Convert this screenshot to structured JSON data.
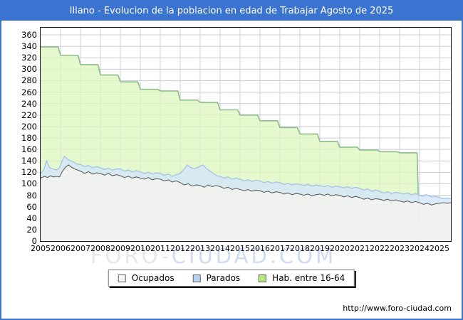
{
  "title": "Illano - Evolucion de la poblacion en edad de Trabajar Agosto de 2025",
  "watermark": {
    "part1": "FORO-",
    "part2": "CIUDAD.COM"
  },
  "footer_url": "http://www.foro-ciudad.com",
  "colors": {
    "frame_blue": "#3b74d0",
    "grid": "#ccccd8",
    "hab_fill": "#e0f6c2",
    "hab_line": "#8bbd8b",
    "parados_fill": "#d3e6fa",
    "parados_line": "#a6c6e6",
    "ocupados_fill": "#f2f2ee",
    "ocupados_line": "#5f5f5f"
  },
  "legend": [
    {
      "label": "Ocupados",
      "swatch": "#f4f4f0"
    },
    {
      "label": "Parados",
      "swatch": "#b7d3f2"
    },
    {
      "label": "Hab. entre 16-64",
      "swatch": "#b6e97c"
    }
  ],
  "chart_data": {
    "type": "area",
    "title": "Illano - Evolucion de la poblacion en edad de Trabajar Agosto de 2025",
    "x_axis": {
      "min": 2005,
      "max_data": 2025.57,
      "tick_labels": [
        "2005",
        "2006",
        "2007",
        "2008",
        "2009",
        "2010",
        "2011",
        "2012",
        "2013",
        "2014",
        "2015",
        "2016",
        "2017",
        "2018",
        "2019",
        "2020",
        "2021",
        "2022",
        "2023",
        "2024",
        "2025"
      ]
    },
    "y_axis": {
      "min": 0,
      "max": 360,
      "step": 20
    },
    "grid": true,
    "legend_position": "bottom",
    "series": [
      {
        "name": "Hab. entre 16-64",
        "style": "step",
        "fill": "#e0f6c2",
        "fill_opacity": 0.8,
        "line": "#8bbd8b",
        "line_width": 1.6,
        "points": [
          [
            2005,
            339
          ],
          [
            2006,
            324
          ],
          [
            2007,
            308
          ],
          [
            2008,
            290
          ],
          [
            2009,
            278
          ],
          [
            2010,
            265
          ],
          [
            2011,
            262
          ],
          [
            2012,
            246
          ],
          [
            2013,
            242
          ],
          [
            2014,
            229
          ],
          [
            2015,
            220
          ],
          [
            2016,
            210
          ],
          [
            2017,
            198
          ],
          [
            2018,
            187
          ],
          [
            2019,
            174
          ],
          [
            2020,
            164
          ],
          [
            2021,
            159
          ],
          [
            2022,
            156
          ],
          [
            2023,
            154
          ],
          [
            2024,
            0
          ]
        ]
      },
      {
        "name": "Parados (apilado sobre Ocupados)",
        "style": "line",
        "fill": "#d3e6fa",
        "fill_opacity": 0.8,
        "line": "#a6c6e6",
        "line_width": 1.4,
        "points": [
          [
            2005.0,
            118
          ],
          [
            2005.15,
            124
          ],
          [
            2005.3,
            140
          ],
          [
            2005.45,
            128
          ],
          [
            2005.6,
            126
          ],
          [
            2005.8,
            124
          ],
          [
            2005.95,
            128
          ],
          [
            2006.1,
            142
          ],
          [
            2006.2,
            148
          ],
          [
            2006.35,
            143
          ],
          [
            2006.5,
            140
          ],
          [
            2006.7,
            137
          ],
          [
            2006.85,
            134
          ],
          [
            2007.0,
            134
          ],
          [
            2007.2,
            130
          ],
          [
            2007.4,
            132
          ],
          [
            2007.6,
            128
          ],
          [
            2007.8,
            130
          ],
          [
            2008.0,
            128
          ],
          [
            2008.2,
            125
          ],
          [
            2008.4,
            127
          ],
          [
            2008.6,
            124
          ],
          [
            2008.8,
            126
          ],
          [
            2009.0,
            126
          ],
          [
            2009.2,
            122
          ],
          [
            2009.4,
            124
          ],
          [
            2009.6,
            121
          ],
          [
            2009.8,
            123
          ],
          [
            2010.0,
            121
          ],
          [
            2010.2,
            118
          ],
          [
            2010.4,
            120
          ],
          [
            2010.6,
            117
          ],
          [
            2010.8,
            119
          ],
          [
            2011.0,
            118
          ],
          [
            2011.2,
            115
          ],
          [
            2011.4,
            117
          ],
          [
            2011.6,
            113
          ],
          [
            2011.8,
            116
          ],
          [
            2012.0,
            118
          ],
          [
            2012.2,
            126
          ],
          [
            2012.35,
            133
          ],
          [
            2012.5,
            129
          ],
          [
            2012.7,
            126
          ],
          [
            2012.9,
            129
          ],
          [
            2013.0,
            131
          ],
          [
            2013.15,
            133
          ],
          [
            2013.3,
            127
          ],
          [
            2013.5,
            122
          ],
          [
            2013.7,
            117
          ],
          [
            2013.85,
            114
          ],
          [
            2014.0,
            113
          ],
          [
            2014.2,
            110
          ],
          [
            2014.4,
            112
          ],
          [
            2014.6,
            108
          ],
          [
            2014.8,
            110
          ],
          [
            2015.0,
            108
          ],
          [
            2015.2,
            105
          ],
          [
            2015.4,
            107
          ],
          [
            2015.6,
            104
          ],
          [
            2015.8,
            106
          ],
          [
            2016.0,
            105
          ],
          [
            2016.2,
            102
          ],
          [
            2016.4,
            104
          ],
          [
            2016.6,
            101
          ],
          [
            2016.8,
            103
          ],
          [
            2017.0,
            102
          ],
          [
            2017.2,
            99
          ],
          [
            2017.4,
            101
          ],
          [
            2017.6,
            98
          ],
          [
            2017.8,
            100
          ],
          [
            2018.0,
            99
          ],
          [
            2018.2,
            97
          ],
          [
            2018.4,
            99
          ],
          [
            2018.6,
            96
          ],
          [
            2018.8,
            98
          ],
          [
            2019.0,
            97
          ],
          [
            2019.2,
            95
          ],
          [
            2019.4,
            97
          ],
          [
            2019.6,
            94
          ],
          [
            2019.8,
            96
          ],
          [
            2020.0,
            95
          ],
          [
            2020.2,
            93
          ],
          [
            2020.4,
            95
          ],
          [
            2020.6,
            92
          ],
          [
            2020.8,
            94
          ],
          [
            2021.0,
            92
          ],
          [
            2021.2,
            89
          ],
          [
            2021.4,
            91
          ],
          [
            2021.6,
            87
          ],
          [
            2021.8,
            89
          ],
          [
            2022.0,
            87
          ],
          [
            2022.2,
            84
          ],
          [
            2022.4,
            86
          ],
          [
            2022.6,
            83
          ],
          [
            2022.8,
            85
          ],
          [
            2023.0,
            84
          ],
          [
            2023.2,
            82
          ],
          [
            2023.4,
            84
          ],
          [
            2023.6,
            81
          ],
          [
            2023.8,
            83
          ],
          [
            2024.0,
            80
          ],
          [
            2024.15,
            78
          ],
          [
            2024.3,
            81
          ],
          [
            2024.45,
            80
          ],
          [
            2024.6,
            77
          ],
          [
            2024.8,
            78
          ],
          [
            2025.0,
            76
          ],
          [
            2025.2,
            74
          ],
          [
            2025.4,
            75
          ],
          [
            2025.57,
            74
          ]
        ]
      },
      {
        "name": "Ocupados",
        "style": "line",
        "fill": "#f2f2ee",
        "fill_opacity": 0.88,
        "line": "#5f5f5f",
        "line_width": 1.1,
        "points": [
          [
            2005.0,
            110
          ],
          [
            2005.2,
            113
          ],
          [
            2005.35,
            111
          ],
          [
            2005.5,
            114
          ],
          [
            2005.65,
            112
          ],
          [
            2005.8,
            113
          ],
          [
            2005.95,
            112
          ],
          [
            2006.1,
            122
          ],
          [
            2006.25,
            129
          ],
          [
            2006.4,
            133
          ],
          [
            2006.55,
            129
          ],
          [
            2006.7,
            126
          ],
          [
            2006.85,
            124
          ],
          [
            2007.0,
            122
          ],
          [
            2007.2,
            118
          ],
          [
            2007.4,
            121
          ],
          [
            2007.6,
            117
          ],
          [
            2007.8,
            119
          ],
          [
            2008.0,
            118
          ],
          [
            2008.2,
            115
          ],
          [
            2008.4,
            118
          ],
          [
            2008.6,
            114
          ],
          [
            2008.8,
            116
          ],
          [
            2009.0,
            114
          ],
          [
            2009.2,
            111
          ],
          [
            2009.4,
            113
          ],
          [
            2009.6,
            110
          ],
          [
            2009.8,
            112
          ],
          [
            2010.0,
            110
          ],
          [
            2010.2,
            108
          ],
          [
            2010.4,
            111
          ],
          [
            2010.6,
            107
          ],
          [
            2010.8,
            109
          ],
          [
            2011.0,
            108
          ],
          [
            2011.2,
            105
          ],
          [
            2011.4,
            107
          ],
          [
            2011.6,
            103
          ],
          [
            2011.8,
            105
          ],
          [
            2012.0,
            102
          ],
          [
            2012.2,
            98
          ],
          [
            2012.4,
            100
          ],
          [
            2012.6,
            96
          ],
          [
            2012.8,
            98
          ],
          [
            2013.0,
            97
          ],
          [
            2013.2,
            94
          ],
          [
            2013.4,
            98
          ],
          [
            2013.6,
            95
          ],
          [
            2013.8,
            97
          ],
          [
            2014.0,
            95
          ],
          [
            2014.2,
            92
          ],
          [
            2014.4,
            94
          ],
          [
            2014.6,
            90
          ],
          [
            2014.8,
            92
          ],
          [
            2015.0,
            90
          ],
          [
            2015.2,
            88
          ],
          [
            2015.4,
            90
          ],
          [
            2015.6,
            87
          ],
          [
            2015.8,
            89
          ],
          [
            2016.0,
            88
          ],
          [
            2016.2,
            85
          ],
          [
            2016.4,
            87
          ],
          [
            2016.6,
            84
          ],
          [
            2016.8,
            86
          ],
          [
            2017.0,
            85
          ],
          [
            2017.2,
            82
          ],
          [
            2017.4,
            84
          ],
          [
            2017.6,
            81
          ],
          [
            2017.8,
            83
          ],
          [
            2018.0,
            82
          ],
          [
            2018.2,
            80
          ],
          [
            2018.4,
            82
          ],
          [
            2018.6,
            79
          ],
          [
            2018.8,
            81
          ],
          [
            2019.0,
            82
          ],
          [
            2019.2,
            80
          ],
          [
            2019.4,
            82
          ],
          [
            2019.6,
            79
          ],
          [
            2019.8,
            81
          ],
          [
            2020.0,
            80
          ],
          [
            2020.2,
            77
          ],
          [
            2020.4,
            79
          ],
          [
            2020.6,
            76
          ],
          [
            2020.8,
            78
          ],
          [
            2021.0,
            76
          ],
          [
            2021.2,
            73
          ],
          [
            2021.4,
            75
          ],
          [
            2021.6,
            72
          ],
          [
            2021.8,
            74
          ],
          [
            2022.0,
            73
          ],
          [
            2022.2,
            71
          ],
          [
            2022.4,
            73
          ],
          [
            2022.6,
            70
          ],
          [
            2022.8,
            72
          ],
          [
            2023.0,
            70
          ],
          [
            2023.2,
            68
          ],
          [
            2023.4,
            70
          ],
          [
            2023.6,
            67
          ],
          [
            2023.8,
            69
          ],
          [
            2024.0,
            67
          ],
          [
            2024.2,
            64
          ],
          [
            2024.4,
            66
          ],
          [
            2024.6,
            63
          ],
          [
            2024.8,
            65
          ],
          [
            2025.0,
            66
          ],
          [
            2025.2,
            67
          ],
          [
            2025.4,
            66
          ],
          [
            2025.57,
            67
          ]
        ]
      }
    ]
  }
}
